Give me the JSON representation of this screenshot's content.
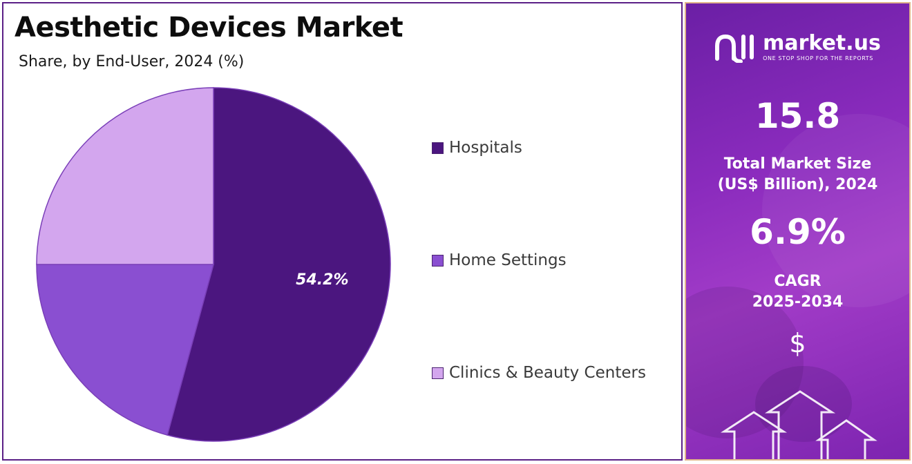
{
  "header": {
    "title": "Aesthetic Devices Market",
    "subtitle": "Share, by End-User, 2024 (%)"
  },
  "chart_data": {
    "type": "pie",
    "categories": [
      "Hospitals",
      "Home Settings",
      "Clinics & Beauty Centers"
    ],
    "values": [
      54.2,
      20.8,
      25.0
    ],
    "colors": [
      "#4b167f",
      "#8a4fd1",
      "#d3a6ee"
    ],
    "data_labels": [
      "54.2%",
      "",
      ""
    ],
    "legend_position": "right"
  },
  "sidebar": {
    "brand_name": "market.us",
    "brand_tagline": "ONE STOP SHOP FOR THE REPORTS",
    "market_size_value": "15.8",
    "market_size_label_1": "Total Market Size",
    "market_size_label_2": "(US$ Billion), 2024",
    "cagr_value": "6.9%",
    "cagr_label_1": "CAGR",
    "cagr_label_2": "2025-2034",
    "currency_symbol": "$"
  }
}
